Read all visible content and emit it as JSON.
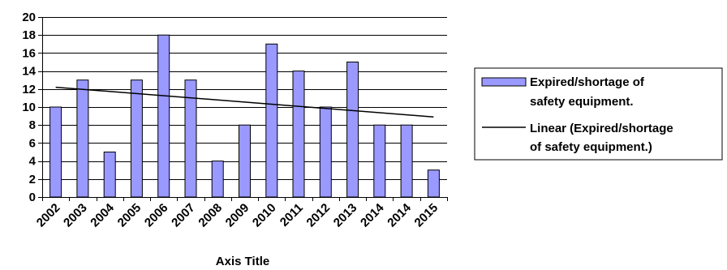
{
  "chart_data": {
    "type": "bar",
    "categories": [
      "2002",
      "2003",
      "2004",
      "2005",
      "2006",
      "2007",
      "2008",
      "2009",
      "2010",
      "2011",
      "2012",
      "2013",
      "2014",
      "2014",
      "2015"
    ],
    "series": [
      {
        "name": "Expired/shortage of safety equipment.",
        "values": [
          10,
          13,
          5,
          13,
          18,
          13,
          4,
          8,
          17,
          14,
          10,
          15,
          8,
          8,
          3
        ],
        "color": "#9999ff"
      }
    ],
    "trendline": {
      "type": "linear",
      "name": "Linear (Expired/shortage of safety equipment.)",
      "start": 12.2,
      "end": 8.9,
      "color": "#000000"
    },
    "xlabel": "Axis Title",
    "ylabel": "",
    "ylim": [
      0,
      20
    ],
    "yticks": [
      0,
      2,
      4,
      6,
      8,
      10,
      12,
      14,
      16,
      18,
      20
    ],
    "grid": true,
    "legend_position": "right"
  },
  "legend": {
    "bar_label_lines": [
      "Expired/shortage of",
      "safety equipment."
    ],
    "line_label_lines": [
      "Linear (Expired/shortage",
      "of safety equipment.)"
    ]
  }
}
